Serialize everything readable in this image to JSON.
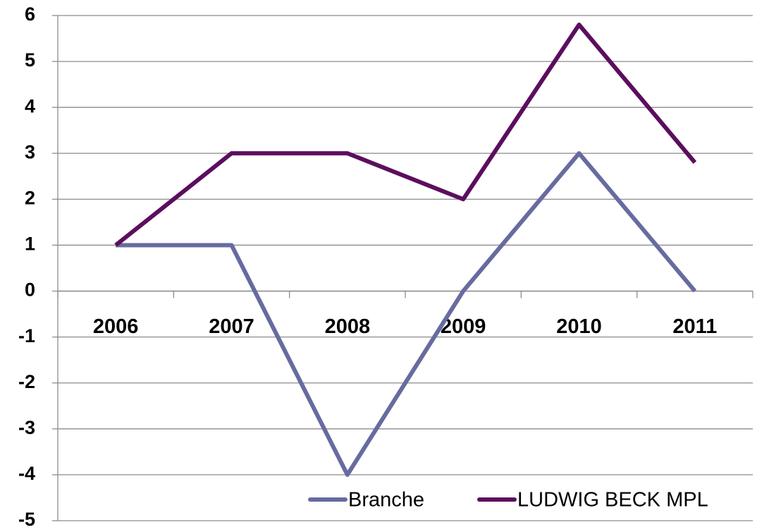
{
  "chart_data": {
    "type": "line",
    "categories": [
      "2006",
      "2007",
      "2008",
      "2009",
      "2010",
      "2011"
    ],
    "series": [
      {
        "name": "Branche",
        "color": "#676b9f",
        "values": [
          1,
          1,
          -4,
          0,
          3,
          0
        ]
      },
      {
        "name": "LUDWIG BECK MPL",
        "color": "#5c0e5e",
        "values": [
          1,
          3,
          3,
          2,
          5.8,
          2.8
        ]
      }
    ],
    "ylim": [
      -5,
      6
    ],
    "yticks": [
      -5,
      -4,
      -3,
      -2,
      -1,
      0,
      1,
      2,
      3,
      4,
      5,
      6
    ],
    "grid": true,
    "legend": "lower right"
  }
}
